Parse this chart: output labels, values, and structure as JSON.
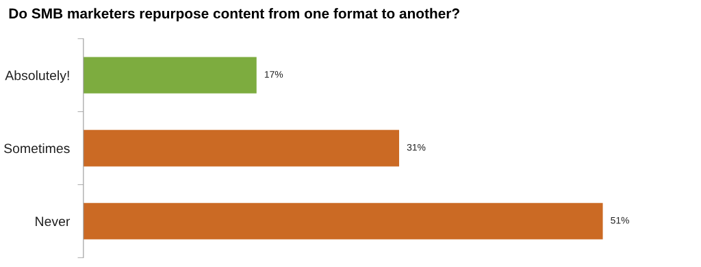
{
  "chart_data": {
    "type": "bar",
    "orientation": "horizontal",
    "title": "Do SMB marketers repurpose content from one format to another?",
    "categories": [
      "Absolutely!",
      "Sometimes",
      "Never"
    ],
    "values": [
      17,
      31,
      51
    ],
    "colors": [
      "#7dac3f",
      "#cb6a24",
      "#cb6a24"
    ],
    "value_labels": [
      "17%",
      "31%",
      "51%"
    ],
    "grid": false,
    "legend": false
  }
}
